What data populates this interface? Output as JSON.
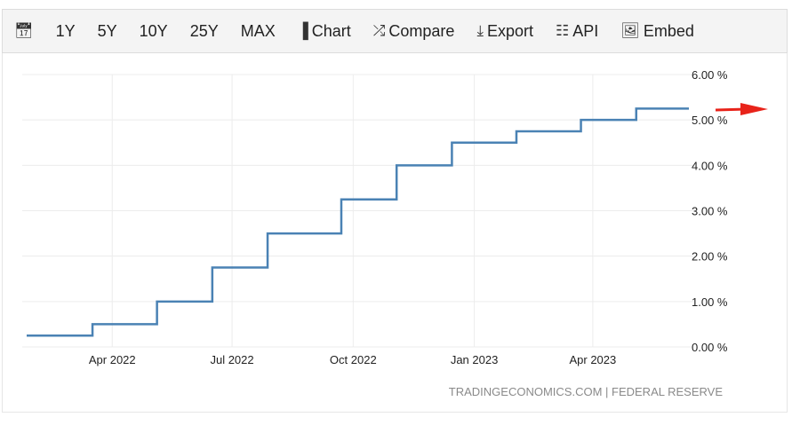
{
  "toolbar": {
    "calendar_icon": "calendar-icon",
    "ranges": [
      "1Y",
      "5Y",
      "10Y",
      "25Y",
      "MAX"
    ],
    "chart": "Chart",
    "compare": "Compare",
    "export": "Export",
    "api": "API",
    "embed": "Embed"
  },
  "source": "TRADINGECONOMICS.COM | FEDERAL RESERVE",
  "colors": {
    "line": "#4a82b4",
    "arrow": "#e8231a",
    "grid": "#ececec"
  },
  "chart_data": {
    "type": "line",
    "step": true,
    "ylim": [
      0,
      6
    ],
    "yticks": [
      "0.00 %",
      "1.00 %",
      "2.00 %",
      "3.00 %",
      "4.00 %",
      "5.00 %",
      "6.00 %"
    ],
    "xticks": [
      {
        "label": "Apr 2022",
        "date": "2022-04-01"
      },
      {
        "label": "Jul 2022",
        "date": "2022-07-01"
      },
      {
        "label": "Oct 2022",
        "date": "2022-10-01"
      },
      {
        "label": "Jan 2023",
        "date": "2023-01-01"
      },
      {
        "label": "Apr 2023",
        "date": "2023-04-01"
      }
    ],
    "xlim": [
      "2022-01-26",
      "2023-06-13"
    ],
    "points": [
      {
        "date": "2022-01-26",
        "value": 0.25
      },
      {
        "date": "2022-03-17",
        "value": 0.5
      },
      {
        "date": "2022-05-05",
        "value": 1.0
      },
      {
        "date": "2022-06-16",
        "value": 1.75
      },
      {
        "date": "2022-07-28",
        "value": 2.5
      },
      {
        "date": "2022-09-22",
        "value": 3.25
      },
      {
        "date": "2022-11-03",
        "value": 4.0
      },
      {
        "date": "2022-12-15",
        "value": 4.5
      },
      {
        "date": "2023-02-02",
        "value": 4.75
      },
      {
        "date": "2023-03-23",
        "value": 5.0
      },
      {
        "date": "2023-05-04",
        "value": 5.25
      },
      {
        "date": "2023-06-13",
        "value": 5.25
      }
    ],
    "grid": true,
    "annotation": "red arrow pointing right at latest value"
  }
}
